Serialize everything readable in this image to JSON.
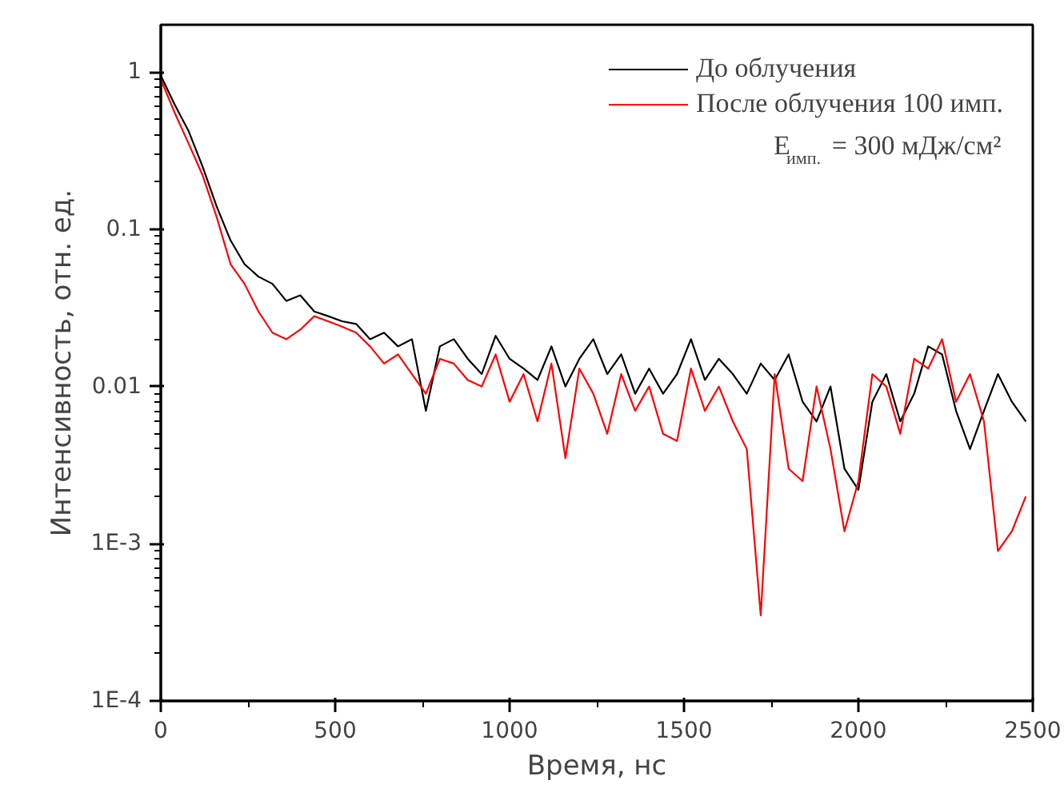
{
  "chart_data": {
    "type": "line",
    "xlabel": "Время, нс",
    "ylabel": "Интенсивность, отн. ед.",
    "log": "y",
    "xlim": [
      0,
      2500
    ],
    "ylim": [
      0.0001,
      2
    ],
    "xticks": [
      0,
      500,
      1000,
      1500,
      2000,
      2500
    ],
    "yticks": [
      {
        "value": 0.0001,
        "label": "1E-4"
      },
      {
        "value": 0.001,
        "label": "1E-3"
      },
      0.01,
      0.1,
      1
    ],
    "grid": false,
    "legend": "top right",
    "line_style": "solid",
    "marker": "none",
    "x": [
      0,
      40,
      80,
      120,
      160,
      200,
      240,
      280,
      320,
      360,
      400,
      440,
      480,
      520,
      560,
      600,
      640,
      680,
      720,
      760,
      800,
      840,
      880,
      920,
      960,
      1000,
      1040,
      1080,
      1120,
      1160,
      1200,
      1240,
      1280,
      1320,
      1360,
      1400,
      1440,
      1480,
      1520,
      1560,
      1600,
      1640,
      1680,
      1720,
      1760,
      1800,
      1840,
      1880,
      1920,
      1960,
      2000,
      2040,
      2080,
      2120,
      2160,
      2200,
      2240,
      2280,
      2320,
      2360,
      2400,
      2440,
      2480
    ],
    "series": [
      {
        "name": "До облучения",
        "color": "#000000",
        "values": [
          0.95,
          0.62,
          0.42,
          0.25,
          0.14,
          0.085,
          0.06,
          0.05,
          0.045,
          0.035,
          0.038,
          0.03,
          0.028,
          0.026,
          0.025,
          0.02,
          0.022,
          0.018,
          0.02,
          0.007,
          0.018,
          0.02,
          0.015,
          0.012,
          0.021,
          0.015,
          0.013,
          0.011,
          0.018,
          0.01,
          0.015,
          0.02,
          0.012,
          0.016,
          0.009,
          0.013,
          0.009,
          0.012,
          0.02,
          0.011,
          0.015,
          0.012,
          0.009,
          0.014,
          0.011,
          0.016,
          0.008,
          0.006,
          0.01,
          0.003,
          0.0022,
          0.008,
          0.012,
          0.006,
          0.009,
          0.018,
          0.016,
          0.007,
          0.004,
          0.007,
          0.012,
          0.008,
          0.006
        ]
      },
      {
        "name": "После облучения 100 имп.",
        "color": "#ff0000",
        "values": [
          0.9,
          0.55,
          0.35,
          0.22,
          0.12,
          0.06,
          0.045,
          0.03,
          0.022,
          0.02,
          0.023,
          0.028,
          0.026,
          0.024,
          0.022,
          0.018,
          0.014,
          0.016,
          0.012,
          0.009,
          0.015,
          0.014,
          0.011,
          0.01,
          0.016,
          0.008,
          0.012,
          0.006,
          0.014,
          0.0035,
          0.013,
          0.009,
          0.005,
          0.012,
          0.007,
          0.01,
          0.005,
          0.0045,
          0.013,
          0.007,
          0.01,
          0.006,
          0.004,
          0.00035,
          0.012,
          0.003,
          0.0025,
          0.01,
          0.004,
          0.0012,
          0.0025,
          0.012,
          0.01,
          0.005,
          0.015,
          0.013,
          0.02,
          0.008,
          0.012,
          0.006,
          0.0009,
          0.0012,
          0.002
        ]
      }
    ],
    "annotations": [
      "E$_{имп.}$ = 300 мДж/см²"
    ]
  }
}
